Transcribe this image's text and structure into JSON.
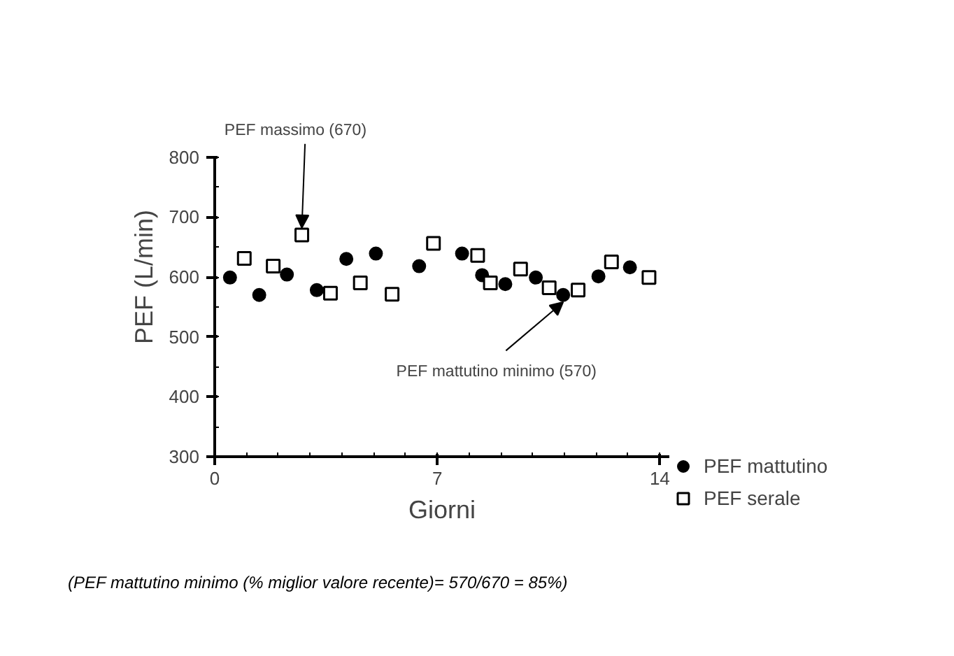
{
  "chart_data": {
    "type": "scatter",
    "xlabel": "Giorni",
    "ylabel": "PEF (L/min)",
    "xlim": [
      0,
      14.3
    ],
    "ylim": [
      300,
      800
    ],
    "xticks": [
      0,
      7,
      14
    ],
    "yticks": [
      300,
      400,
      500,
      600,
      700,
      800
    ],
    "series": [
      {
        "name": "PEF mattutino",
        "color": "#000000",
        "marker": "circle",
        "x": [
          0.48,
          1.4,
          2.27,
          3.21,
          4.14,
          5.07,
          6.43,
          7.78,
          8.41,
          9.14,
          10.1,
          10.96,
          12.07,
          13.06
        ],
        "values": [
          599,
          570,
          604,
          578,
          630,
          639,
          618,
          639,
          603,
          588,
          599,
          570,
          601,
          616
        ]
      },
      {
        "name": "PEF serale",
        "color": "#000000",
        "marker": "square",
        "x": [
          0.93,
          1.84,
          2.74,
          3.64,
          4.58,
          5.58,
          6.88,
          8.27,
          8.67,
          9.62,
          10.52,
          11.43,
          12.48,
          13.66
        ],
        "values": [
          631,
          618,
          670,
          573,
          590,
          571,
          656,
          636,
          590,
          613,
          582,
          578,
          625,
          599
        ]
      }
    ],
    "annotations": [
      {
        "text": "PEF massimo (670)",
        "x": 2.74,
        "y": 670
      },
      {
        "text": "PEF mattutino minimo (570)",
        "x": 10.96,
        "y": 570
      },
      "(PEF mattutino minimo (% miglior valore recente)= 570/670 = 85%)"
    ],
    "legend": "right",
    "grid": false
  }
}
